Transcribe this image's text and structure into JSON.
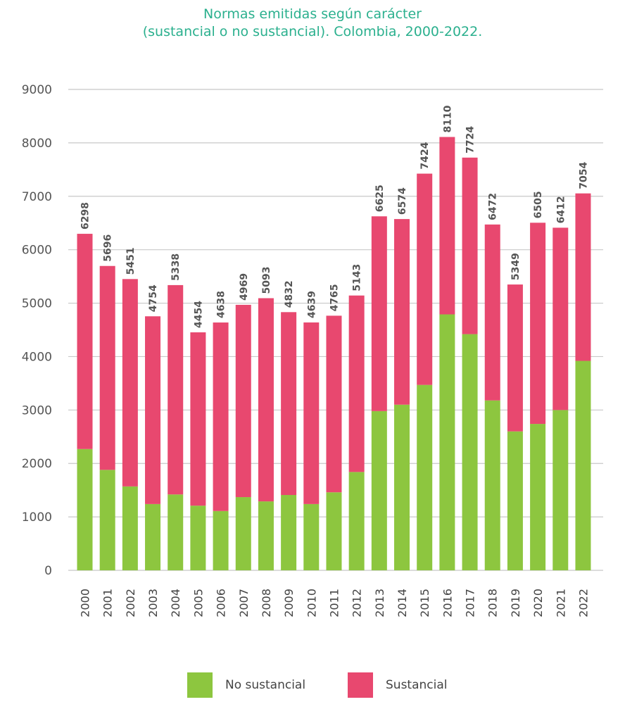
{
  "chart_data": {
    "type": "bar",
    "stacked": true,
    "title": "Normas emitidas según carácter",
    "subtitle": "(sustancial o no sustancial). Colombia, 2000-2022.",
    "xlabel": "",
    "ylabel": "",
    "ylim": [
      0,
      9000
    ],
    "yticks": [
      0,
      1000,
      2000,
      3000,
      4000,
      5000,
      6000,
      7000,
      8000,
      9000
    ],
    "grid": true,
    "legend_position": "bottom",
    "categories": [
      "2000",
      "2001",
      "2002",
      "2003",
      "2004",
      "2005",
      "2006",
      "2007",
      "2008",
      "2009",
      "2010",
      "2011",
      "2012",
      "2013",
      "2014",
      "2015",
      "2016",
      "2017",
      "2018",
      "2019",
      "2020",
      "2021",
      "2022"
    ],
    "series": [
      {
        "name": "No sustancial",
        "color": "#8dc63f",
        "values": [
          2270,
          1880,
          1570,
          1240,
          1420,
          1210,
          1110,
          1370,
          1290,
          1410,
          1240,
          1460,
          1840,
          2980,
          3100,
          3470,
          4790,
          4420,
          3180,
          2600,
          2740,
          3000,
          3920
        ]
      },
      {
        "name": "Sustancial",
        "color": "#e8486f",
        "values": [
          4028,
          3816,
          3881,
          3514,
          3918,
          3244,
          3528,
          3599,
          3803,
          3422,
          3399,
          3305,
          3303,
          3645,
          3474,
          3954,
          3320,
          3304,
          3292,
          2749,
          3765,
          3412,
          3134
        ]
      }
    ],
    "totals": [
      "6298",
      "5696",
      "5451",
      "4754",
      "5338",
      "4454",
      "4638",
      "4969",
      "5093",
      "4832",
      "4639",
      "4765",
      "5143",
      "6625",
      "6574",
      "7424",
      "8110",
      "7724",
      "6472",
      "5349",
      "6505",
      "6412",
      "7054"
    ]
  }
}
